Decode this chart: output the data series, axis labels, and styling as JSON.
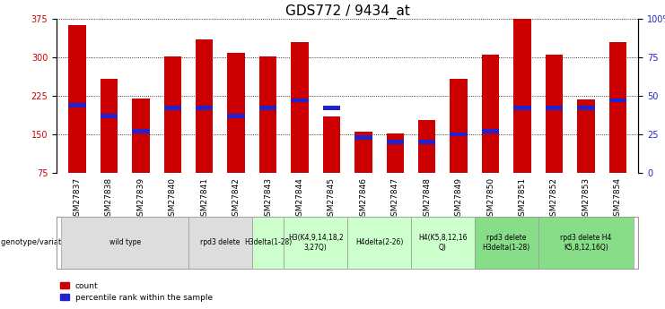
{
  "title": "GDS772 / 9434_at",
  "samples": [
    "GSM27837",
    "GSM27838",
    "GSM27839",
    "GSM27840",
    "GSM27841",
    "GSM27842",
    "GSM27843",
    "GSM27844",
    "GSM27845",
    "GSM27846",
    "GSM27847",
    "GSM27848",
    "GSM27849",
    "GSM27850",
    "GSM27851",
    "GSM27852",
    "GSM27853",
    "GSM27854"
  ],
  "counts": [
    362,
    258,
    220,
    302,
    335,
    308,
    302,
    330,
    185,
    155,
    152,
    178,
    258,
    305,
    375,
    305,
    218,
    330
  ],
  "percentile_values": [
    44,
    37,
    27,
    42,
    42,
    37,
    42,
    47,
    42,
    23,
    20,
    20,
    25,
    27,
    42,
    42,
    42,
    47
  ],
  "ylim_left": [
    75,
    375
  ],
  "ylim_right": [
    0,
    100
  ],
  "yticks_left": [
    75,
    150,
    225,
    300,
    375
  ],
  "yticks_right": [
    0,
    25,
    50,
    75,
    100
  ],
  "bar_color": "#cc0000",
  "marker_color": "#2222cc",
  "bar_width": 0.55,
  "groups": [
    {
      "label": "wild type",
      "indices": [
        0,
        1,
        2,
        3
      ],
      "bg": "#dddddd"
    },
    {
      "label": "rpd3 delete",
      "indices": [
        4,
        5
      ],
      "bg": "#dddddd"
    },
    {
      "label": "H3delta(1-28)",
      "indices": [
        6
      ],
      "bg": "#ccffcc"
    },
    {
      "label": "H3(K4,9,14,18,2\n3,27Q)",
      "indices": [
        7,
        8
      ],
      "bg": "#ccffcc"
    },
    {
      "label": "H4delta(2-26)",
      "indices": [
        9,
        10
      ],
      "bg": "#ccffcc"
    },
    {
      "label": "H4(K5,8,12,16\nQ)",
      "indices": [
        11,
        12
      ],
      "bg": "#ccffcc"
    },
    {
      "label": "rpd3 delete\nH3delta(1-28)",
      "indices": [
        13,
        14
      ],
      "bg": "#88dd88"
    },
    {
      "label": "rpd3 delete H4\nK5,8,12,16Q)",
      "indices": [
        15,
        16,
        17
      ],
      "bg": "#88dd88"
    }
  ],
  "legend_count_color": "#cc0000",
  "legend_marker_color": "#2222cc",
  "ylabel_left_color": "#cc0000",
  "ylabel_right_color": "#2222cc",
  "title_fontsize": 11,
  "tick_fontsize": 7,
  "grid_color": "#000000",
  "axis_bg": "#ffffff",
  "sample_label_fontsize": 6.5
}
